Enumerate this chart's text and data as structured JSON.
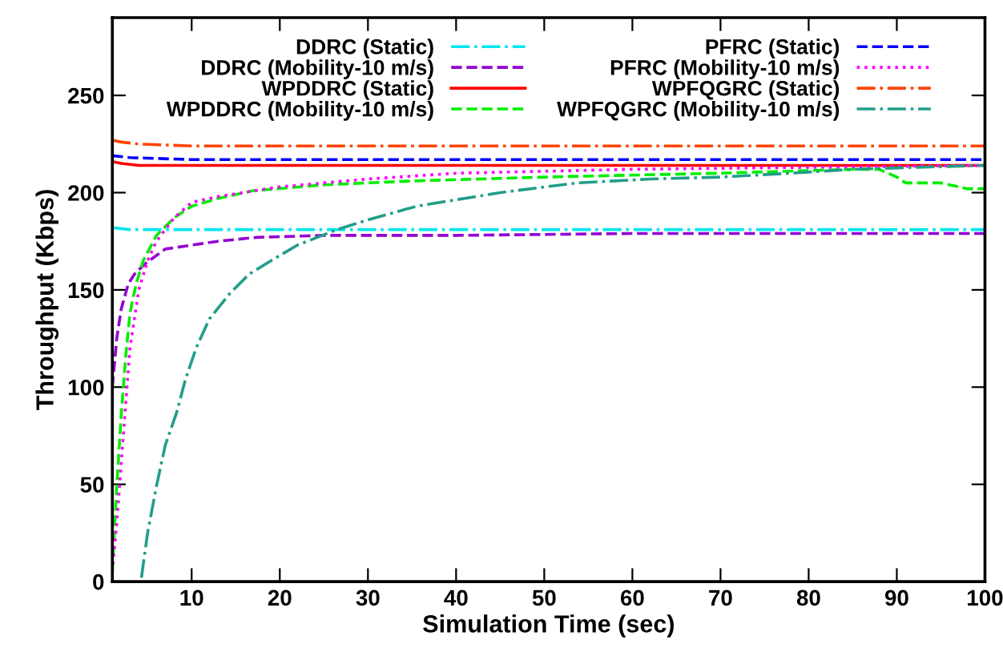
{
  "chart_data": {
    "type": "line",
    "xlabel": "Simulation Time (sec)",
    "ylabel": "Throughput (Kbps)",
    "xlim": [
      1,
      100
    ],
    "ylim": [
      0,
      290
    ],
    "xticks": [
      10,
      20,
      30,
      40,
      50,
      60,
      70,
      80,
      90,
      100
    ],
    "yticks": [
      0,
      50,
      100,
      150,
      200,
      250
    ],
    "grid": false,
    "legend": "top",
    "marker": "none",
    "series": [
      {
        "name": "DDRC (Static)",
        "color": "#00e5ee",
        "line_style": "dashdot",
        "x": [
          1,
          3,
          10,
          30,
          60,
          100
        ],
        "values": [
          182,
          181,
          181,
          181,
          181,
          181
        ]
      },
      {
        "name": "DDRC (Mobility-10 m/s)",
        "color": "#9400d3",
        "line_style": "dashed",
        "x": [
          1,
          1.5,
          2,
          2.8,
          3.5,
          4.6,
          5.5,
          7,
          10,
          13,
          17.4,
          25,
          40,
          60,
          80,
          100
        ],
        "values": [
          100,
          125,
          140,
          153,
          158,
          163,
          166,
          171,
          173,
          175,
          177,
          178,
          178,
          179,
          179,
          179
        ]
      },
      {
        "name": "WPDDRC (Static)",
        "color": "#ff0000",
        "line_style": "solid",
        "x": [
          1,
          2,
          4,
          10,
          50,
          100
        ],
        "values": [
          216,
          215,
          214,
          214,
          214,
          214
        ]
      },
      {
        "name": "WPDDRC (Mobility-10 m/s)",
        "color": "#00ee00",
        "line_style": "dashed",
        "x": [
          1,
          1.5,
          2,
          2.5,
          3,
          3.7,
          4.5,
          6,
          8,
          10,
          13,
          17,
          25,
          35,
          50,
          70,
          85,
          88,
          90,
          91,
          95,
          98,
          100
        ],
        "values": [
          5,
          49,
          85,
          115,
          138,
          153,
          165,
          178,
          187,
          193,
          197,
          201,
          204,
          206,
          208,
          210,
          212,
          212,
          208,
          205,
          205,
          202,
          202
        ]
      },
      {
        "name": "PFRC (Static)",
        "color": "#0000ff",
        "line_style": "dashed",
        "x": [
          1,
          3,
          10,
          50,
          100
        ],
        "values": [
          219,
          218,
          217,
          217,
          217
        ]
      },
      {
        "name": "PFRC (Mobility-10 m/s)",
        "color": "#ff00ff",
        "line_style": "dotted",
        "x": [
          1,
          1.5,
          2,
          3,
          4,
          5,
          6,
          8,
          10,
          13,
          20,
          30,
          40,
          60,
          80,
          100
        ],
        "values": [
          5,
          30,
          60,
          120,
          150,
          165,
          175,
          187,
          195,
          198,
          203,
          207,
          210,
          212,
          213,
          214
        ]
      },
      {
        "name": "WPFQGRC (Static)",
        "color": "#ff4500",
        "line_style": "dashdot",
        "x": [
          1,
          2,
          4,
          10,
          50,
          100
        ],
        "values": [
          227,
          226,
          225,
          224,
          224,
          224
        ]
      },
      {
        "name": "WPFQGRC (Mobility-10 m/s)",
        "color": "#229e89",
        "line_style": "dashdot",
        "x": [
          4.3,
          5,
          6,
          7,
          8.3,
          9.3,
          10.5,
          12,
          14.3,
          16.5,
          19,
          22,
          26.5,
          30,
          35.5,
          45,
          53.7,
          62,
          70,
          78,
          85,
          92,
          100
        ],
        "values": [
          2,
          25,
          49,
          70,
          87,
          104,
          120,
          135,
          148,
          158,
          165,
          173,
          181,
          186,
          193,
          200,
          205,
          207,
          208,
          210,
          212,
          213,
          214
        ]
      }
    ]
  }
}
